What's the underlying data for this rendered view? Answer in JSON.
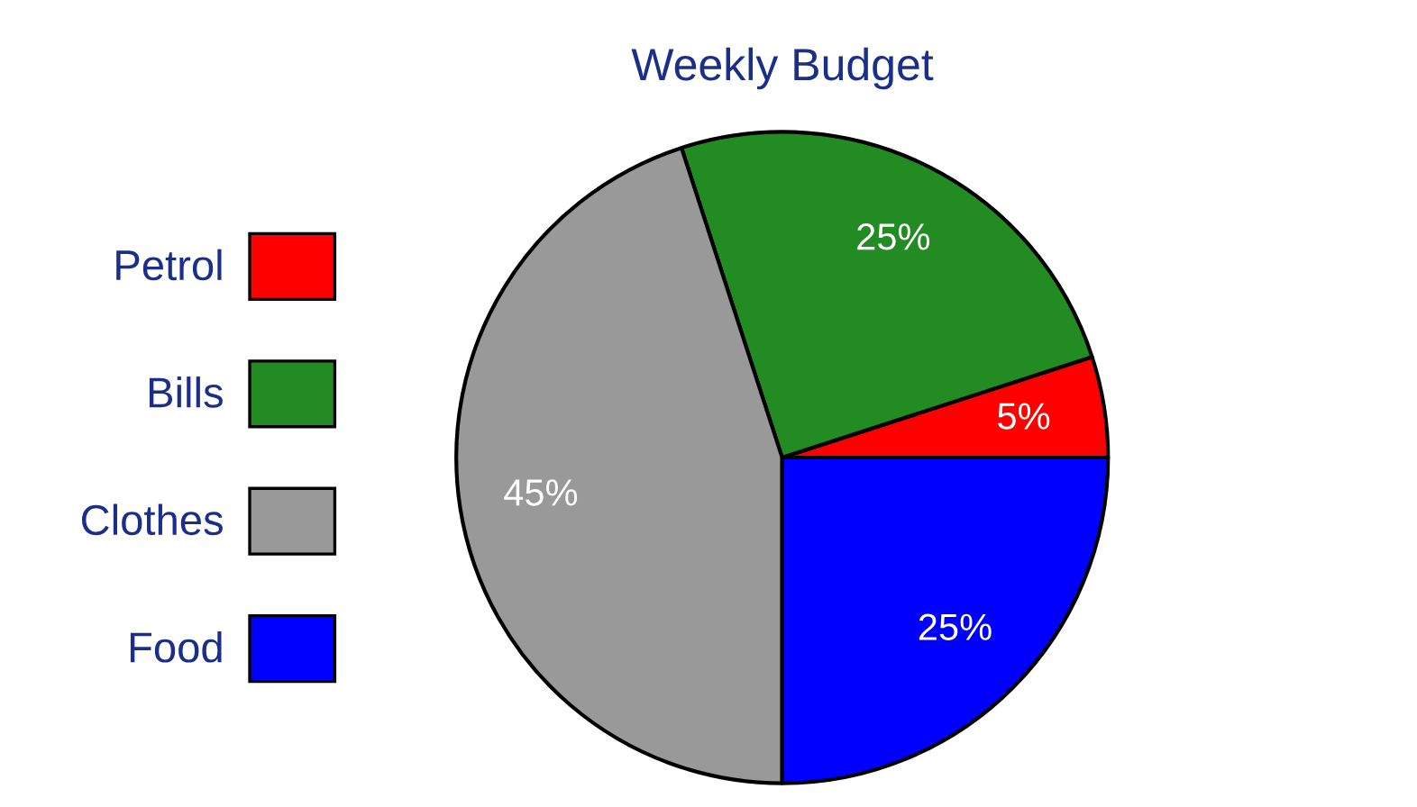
{
  "chart_data": {
    "type": "pie",
    "title": "Weekly Budget",
    "categories": [
      "Petrol",
      "Bills",
      "Clothes",
      "Food"
    ],
    "values": [
      5,
      25,
      45,
      25
    ],
    "colors": [
      "#ff0000",
      "#228b22",
      "#999999",
      "#0000ff"
    ],
    "value_labels": [
      "5%",
      "25%",
      "45%",
      "25%"
    ],
    "legend": "left"
  }
}
